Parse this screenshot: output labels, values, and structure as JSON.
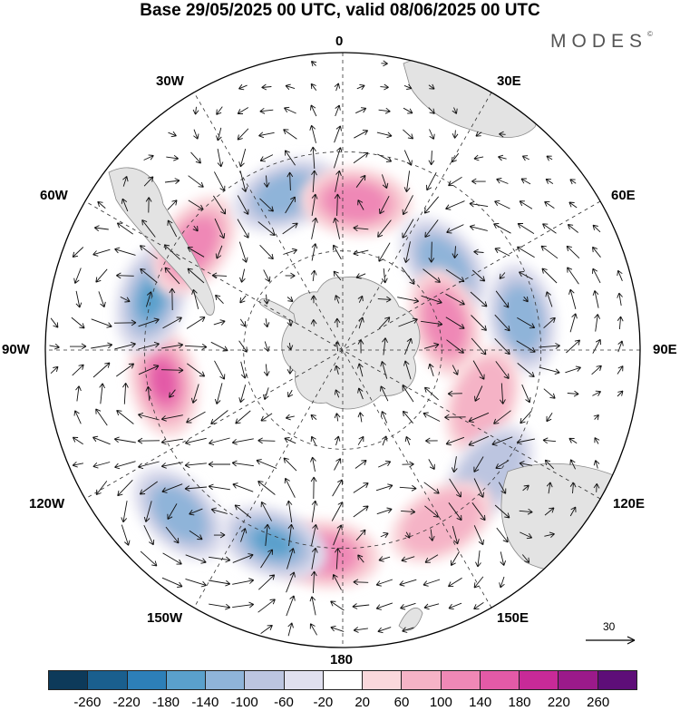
{
  "header": {
    "title": "Base 29/05/2025 00 UTC, valid 08/06/2025 00 UTC",
    "brand": "MODES",
    "brand_mark": "©"
  },
  "map": {
    "projection": "south-polar-stereographic",
    "longitude_labels": {
      "lon_0": "0",
      "lon_30e": "30E",
      "lon_60e": "60E",
      "lon_90e": "90E",
      "lon_120e": "120E",
      "lon_150e": "150E",
      "lon_180": "180",
      "lon_150w": "150W",
      "lon_120w": "120W",
      "lon_90w": "90W",
      "lon_60w": "60W",
      "lon_30w": "30W"
    },
    "reference_vector": {
      "label": "30"
    },
    "anomaly_centers": [
      {
        "sign": "positive",
        "lon": -175,
        "lat": -28,
        "level": 2
      },
      {
        "sign": "negative",
        "lon": -160,
        "lat": -28,
        "level": 3
      },
      {
        "sign": "negative",
        "lon": -135,
        "lat": -20,
        "level": 2
      },
      {
        "sign": "positive",
        "lon": -100,
        "lat": -35,
        "level": 3
      },
      {
        "sign": "negative",
        "lon": -75,
        "lat": -30,
        "level": 3
      },
      {
        "sign": "positive",
        "lon": -55,
        "lat": -35,
        "level": 2
      },
      {
        "sign": "negative",
        "lon": -20,
        "lat": -40,
        "level": 2
      },
      {
        "sign": "positive",
        "lon": 5,
        "lat": -45,
        "level": 2
      },
      {
        "sign": "negative",
        "lon": 50,
        "lat": -50,
        "level": 2
      },
      {
        "sign": "positive",
        "lon": 75,
        "lat": -58,
        "level": 2
      },
      {
        "sign": "negative",
        "lon": 80,
        "lat": -35,
        "level": 2
      },
      {
        "sign": "positive",
        "lon": 110,
        "lat": -45,
        "level": 1
      },
      {
        "sign": "negative",
        "lon": 130,
        "lat": -32,
        "level": 1
      },
      {
        "sign": "positive",
        "lon": 150,
        "lat": -30,
        "level": 1
      }
    ]
  },
  "colorbar": {
    "colors": [
      "#0d3a5a",
      "#1a5f8e",
      "#2d7fb8",
      "#5aa0cc",
      "#8fb4d9",
      "#bcc5e0",
      "#e0e0ef",
      "#ffffff",
      "#fad8dc",
      "#f5b3c6",
      "#ef88b6",
      "#e35aa7",
      "#c82a98",
      "#9b1a8a",
      "#5e0e78"
    ],
    "tick_labels": [
      "-260",
      "-220",
      "-180",
      "-140",
      "-100",
      "-60",
      "-20",
      "20",
      "60",
      "100",
      "140",
      "180",
      "220",
      "260"
    ]
  }
}
